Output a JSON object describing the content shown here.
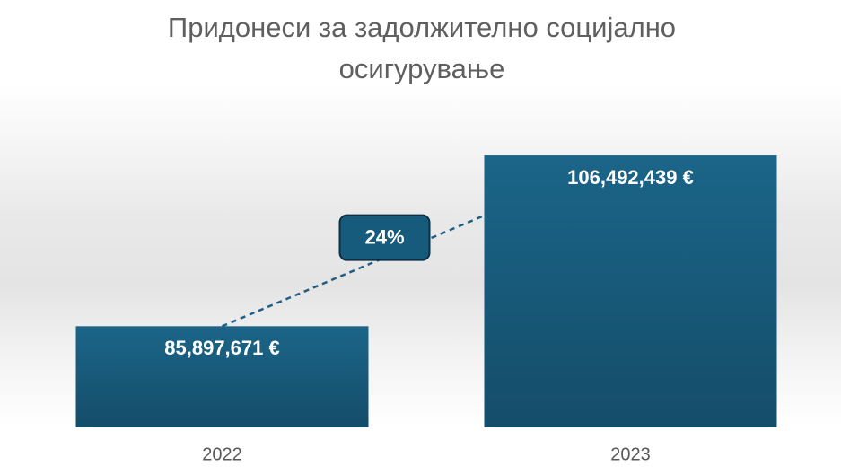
{
  "chart_data": {
    "type": "bar",
    "title": "Придонеси за задолжително социјално осигурување",
    "categories": [
      "2022",
      "2023"
    ],
    "values": [
      85897671,
      106492439
    ],
    "value_labels": [
      "85,897,671 €",
      "106,492,439 €"
    ],
    "annotation": "24%",
    "color": "#165a7c",
    "ylim": [
      73700000,
      114400000
    ]
  }
}
